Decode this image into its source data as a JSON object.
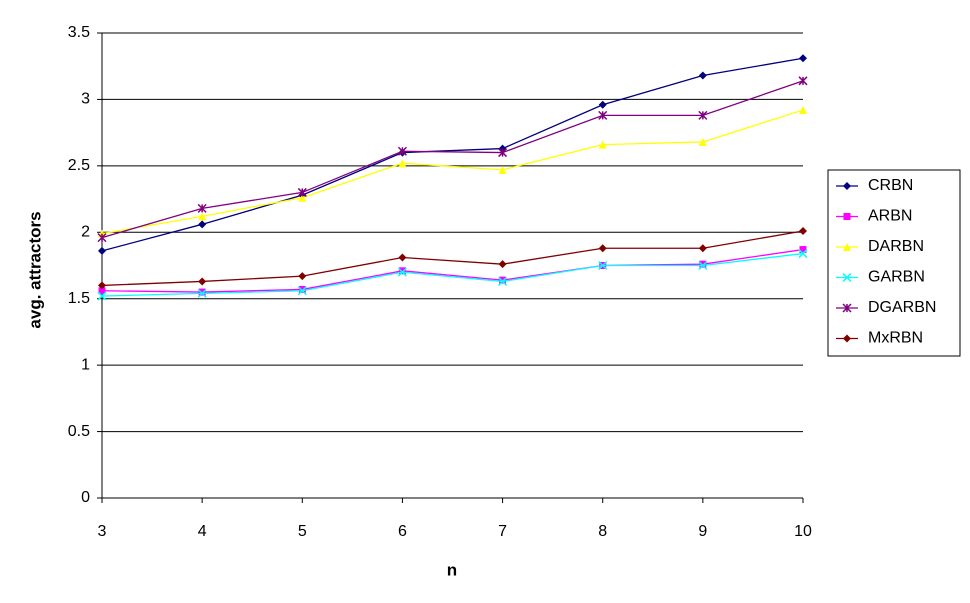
{
  "chart_data": {
    "type": "line",
    "x_label": "n",
    "y_label": "avg. attractors",
    "x": [
      3,
      4,
      5,
      6,
      7,
      8,
      9,
      10
    ],
    "xlim": [
      3,
      10
    ],
    "xticks": [
      3,
      4,
      5,
      6,
      7,
      8,
      9,
      10
    ],
    "ylim": [
      0,
      3.5
    ],
    "yticks": [
      0,
      0.5,
      1,
      1.5,
      2,
      2.5,
      3,
      3.5
    ],
    "grid": true,
    "legend": "right",
    "series": [
      {
        "name": "CRBN",
        "color": "#000080",
        "marker": "diamond",
        "values": [
          1.86,
          2.06,
          2.28,
          2.6,
          2.63,
          2.96,
          3.18,
          3.31
        ]
      },
      {
        "name": "ARBN",
        "color": "#ff00ff",
        "marker": "square",
        "values": [
          1.56,
          1.55,
          1.57,
          1.71,
          1.64,
          1.75,
          1.76,
          1.87
        ]
      },
      {
        "name": "DARBN",
        "color": "#ffff00",
        "marker": "triangle",
        "values": [
          1.99,
          2.12,
          2.26,
          2.52,
          2.47,
          2.66,
          2.68,
          2.92
        ]
      },
      {
        "name": "GARBN",
        "color": "#00ffff",
        "marker": "cross",
        "values": [
          1.52,
          1.54,
          1.56,
          1.7,
          1.63,
          1.75,
          1.75,
          1.84
        ]
      },
      {
        "name": "DGARBN",
        "color": "#800080",
        "marker": "star",
        "values": [
          1.96,
          2.18,
          2.3,
          2.61,
          2.6,
          2.88,
          2.88,
          3.14
        ]
      },
      {
        "name": "MxRBN",
        "color": "#800000",
        "marker": "circle",
        "values": [
          1.6,
          1.63,
          1.67,
          1.81,
          1.76,
          1.88,
          1.88,
          2.01
        ]
      }
    ]
  }
}
